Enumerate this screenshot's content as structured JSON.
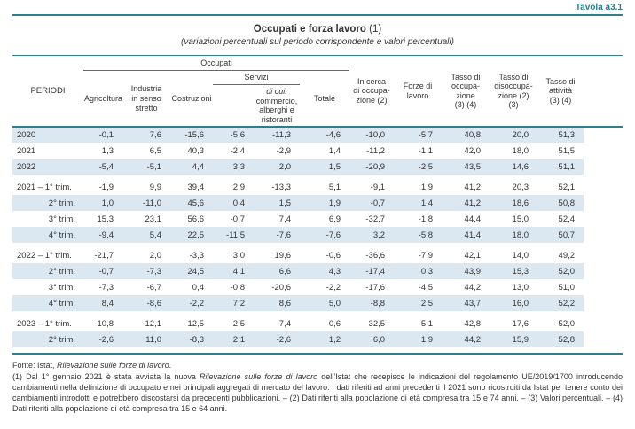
{
  "page": {
    "tavola_label": "Tavola a3.1",
    "title": "Occupati e forza lavoro",
    "title_note": " (1)",
    "subtitle": "(variazioni percentuali sul periodo corrispondente e valori percentuali)"
  },
  "colors": {
    "accent_teal": "#2e7e8e",
    "row_stripe": "#dbe7f1",
    "text": "#333333"
  },
  "table": {
    "headers": {
      "periodi": "PERIODI",
      "occupati_group": "Occupati",
      "servizi_group": "Servizi",
      "agricoltura": "Agricoltura",
      "industria": "Industria\nin senso\nstretto",
      "costruzioni": "Costruzioni",
      "di_cui_label": "di cui:",
      "di_cui_rest": "commercio,\nalberghi e\nristoranti",
      "totale": "Totale",
      "in_cerca": "In cerca\ndi occupa-\nzione (2)",
      "forze": "Forze di\nlavoro",
      "tasso_occupazione": "Tasso di\noccupa-\nzione\n(3) (4)",
      "tasso_disoccupazione": "Tasso di\ndisoccupa-\nzione (2)\n(3)",
      "tasso_attivita": "Tasso di\nattività\n(3) (4)"
    },
    "rows": [
      {
        "label": "2020",
        "indent": false,
        "group_start": false,
        "values": [
          "-0,1",
          "7,6",
          "-15,6",
          "-5,6",
          "-11,3",
          "-4,6",
          "-10,0",
          "-5,7",
          "40,8",
          "20,0",
          "51,3"
        ]
      },
      {
        "label": "2021",
        "indent": false,
        "group_start": false,
        "values": [
          "1,3",
          "6,5",
          "40,3",
          "-2,4",
          "-2,9",
          "1,4",
          "-11,2",
          "-1,1",
          "42,0",
          "18,0",
          "51,5"
        ]
      },
      {
        "label": "2022",
        "indent": false,
        "group_start": false,
        "values": [
          "-5,4",
          "-5,1",
          "4,4",
          "3,3",
          "2,0",
          "1,5",
          "-20,9",
          "-2,5",
          "43,5",
          "14,6",
          "51,1"
        ]
      },
      {
        "label": "2021 – 1° trim.",
        "indent": false,
        "group_start": true,
        "values": [
          "-1,9",
          "9,9",
          "39,4",
          "2,9",
          "-13,3",
          "5,1",
          "-9,1",
          "1,9",
          "41,2",
          "20,3",
          "52,1"
        ]
      },
      {
        "label": "2° trim.",
        "indent": true,
        "group_start": false,
        "values": [
          "1,0",
          "-11,0",
          "45,6",
          "0,4",
          "1,5",
          "1,9",
          "-0,7",
          "1,4",
          "41,2",
          "18,6",
          "50,8"
        ]
      },
      {
        "label": "3° trim.",
        "indent": true,
        "group_start": false,
        "values": [
          "15,3",
          "23,1",
          "56,6",
          "-0,7",
          "7,4",
          "6,9",
          "-32,7",
          "-1,8",
          "44,4",
          "15,0",
          "52,4"
        ]
      },
      {
        "label": "4° trim.",
        "indent": true,
        "group_start": false,
        "values": [
          "-9,4",
          "5,4",
          "22,5",
          "-11,5",
          "-7,6",
          "-7,6",
          "3,2",
          "-5,8",
          "41,4",
          "18,0",
          "50,7"
        ]
      },
      {
        "label": "2022 – 1° trim.",
        "indent": false,
        "group_start": true,
        "values": [
          "-21,7",
          "2,0",
          "-3,3",
          "3,0",
          "19,6",
          "-0,6",
          "-36,6",
          "-7,9",
          "42,1",
          "14,0",
          "49,2"
        ]
      },
      {
        "label": "2° trim.",
        "indent": true,
        "group_start": false,
        "values": [
          "-0,7",
          "-7,3",
          "24,5",
          "4,1",
          "6,6",
          "4,3",
          "-17,4",
          "0,3",
          "43,9",
          "15,3",
          "52,0"
        ]
      },
      {
        "label": "3° trim.",
        "indent": true,
        "group_start": false,
        "values": [
          "-7,3",
          "-6,7",
          "0,4",
          "-0,8",
          "-20,6",
          "-2,2",
          "-17,6",
          "-4,5",
          "44,2",
          "13,0",
          "51,0"
        ]
      },
      {
        "label": "4° trim.",
        "indent": true,
        "group_start": false,
        "values": [
          "8,4",
          "-8,6",
          "-2,2",
          "7,2",
          "8,6",
          "5,0",
          "-8,8",
          "2,5",
          "43,7",
          "16,0",
          "52,2"
        ]
      },
      {
        "label": "2023 – 1° trim.",
        "indent": false,
        "group_start": true,
        "values": [
          "-10,8",
          "-12,1",
          "12,5",
          "2,5",
          "7,4",
          "0,6",
          "32,5",
          "5,1",
          "42,8",
          "17,6",
          "52,0"
        ]
      },
      {
        "label": "2° trim.",
        "indent": true,
        "group_start": false,
        "values": [
          "-2,6",
          "11,0",
          "-8,3",
          "2,1",
          "-2,6",
          "1,2",
          "6,0",
          "1,9",
          "44,2",
          "15,9",
          "52,8"
        ]
      }
    ]
  },
  "footnotes": {
    "fonte_prefix": "Fonte: Istat, ",
    "fonte_italic": "Rilevazione sulle forze di lavoro",
    "fonte_suffix": ".",
    "note1_prefix": "(1) Dal 1° gennaio 2021 è stata avviata la nuova ",
    "note1_italic": "Rilevazione sulle forze di lavoro",
    "note1_rest": " dell’Istat che recepisce le indicazioni del regolamento UE/2019/1700 introducendo cambiamenti nella definizione di occupato e nei principali aggregati di mercato del lavoro. I dati riferiti ad anni precedenti il 2021 sono ricostruiti da Istat per tenere conto dei cambiamenti introdotti e potrebbero discostarsi da precedenti pubblicazioni. – (2) Dati riferiti alla popolazione di età compresa tra 15 e 74 anni. – (3) Valori percentuali. – (4) Dati riferiti alla popolazione di età compresa tra 15 e 64 anni."
  }
}
